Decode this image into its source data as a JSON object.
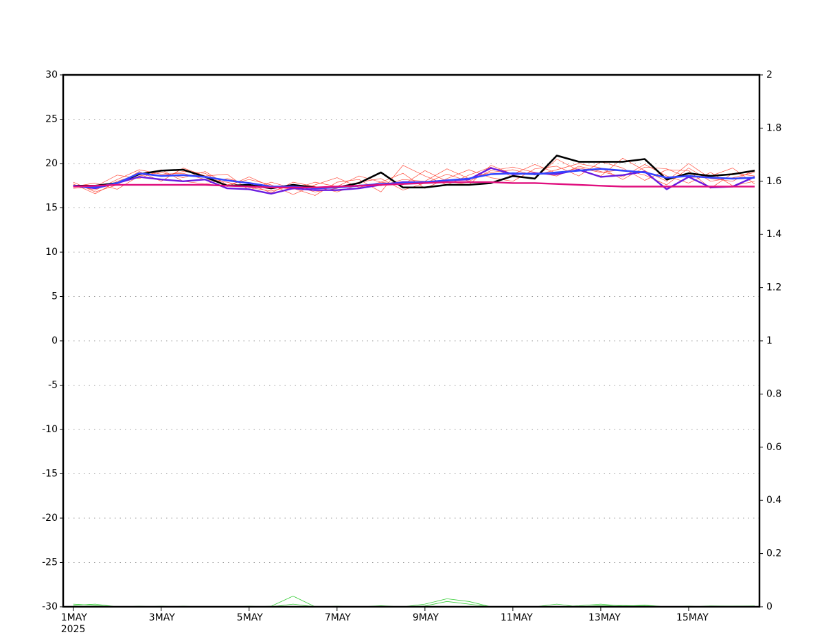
{
  "chart_data": {
    "type": "line",
    "x": [
      1,
      1.5,
      2,
      2.5,
      3,
      3.5,
      4,
      4.5,
      5,
      5.5,
      6,
      6.5,
      7,
      7.5,
      8,
      8.5,
      9,
      9.5,
      10,
      10.5,
      11,
      11.5,
      12,
      12.5,
      13,
      13.5,
      14,
      14.5,
      15,
      15.5,
      16,
      16.5
    ],
    "xlim": [
      0.77,
      16.61
    ],
    "xticks": [
      {
        "value": 1,
        "label": "1MAY"
      },
      {
        "value": 3,
        "label": "3MAY"
      },
      {
        "value": 5,
        "label": "5MAY"
      },
      {
        "value": 7,
        "label": "7MAY"
      },
      {
        "value": 9,
        "label": "9MAY"
      },
      {
        "value": 11,
        "label": "11MAY"
      },
      {
        "value": 13,
        "label": "13MAY"
      },
      {
        "value": 15,
        "label": "15MAY"
      }
    ],
    "year_label": "2025",
    "ylim": [
      -30,
      30
    ],
    "yticks": [
      -30,
      -25,
      -20,
      -15,
      -10,
      -5,
      0,
      5,
      10,
      15,
      20,
      25,
      30
    ],
    "y2lim": [
      0,
      2
    ],
    "y2ticks": [
      0,
      0.2,
      0.4,
      0.6,
      0.8,
      1,
      1.2,
      1.4,
      1.6,
      1.8,
      2
    ],
    "grid": true,
    "series": [
      {
        "color": "#ff4a3a",
        "width": 0.7,
        "values": [
          17.6,
          17.0,
          18.2,
          19.3,
          18.8,
          18.9,
          18.2,
          17.9,
          17.3,
          16.9,
          17.5,
          16.8,
          17.2,
          17.9,
          18.3,
          17.0,
          17.8,
          18.8,
          18.0,
          19.2,
          19.6,
          19.0,
          18.6,
          19.7,
          19.1,
          18.5,
          19.9,
          18.6,
          17.8,
          19.0,
          17.5,
          18.0
        ]
      },
      {
        "color": "#ff4a3a",
        "width": 0.7,
        "values": [
          17.4,
          17.8,
          17.1,
          18.6,
          19.0,
          18.4,
          19.1,
          17.6,
          18.2,
          17.6,
          16.5,
          17.6,
          18.4,
          17.3,
          17.9,
          18.9,
          17.2,
          18.3,
          19.3,
          18.4,
          18.0,
          19.4,
          19.7,
          18.6,
          20.2,
          19.5,
          18.1,
          19.3,
          19.2,
          17.2,
          18.9,
          18.6
        ]
      },
      {
        "color": "#ff4a3a",
        "width": 0.7,
        "values": [
          17.9,
          16.8,
          17.6,
          19.1,
          18.0,
          19.5,
          18.6,
          18.8,
          17.0,
          17.9,
          17.2,
          16.4,
          17.9,
          18.2,
          16.8,
          19.8,
          18.6,
          17.6,
          18.7,
          19.6,
          18.5,
          18.3,
          20.5,
          19.2,
          18.6,
          20.6,
          19.2,
          18.0,
          20.0,
          18.3,
          18.0,
          19.3
        ]
      },
      {
        "color": "#ff4a3a",
        "width": 0.7,
        "values": [
          17.2,
          17.4,
          18.7,
          18.3,
          19.3,
          18.0,
          17.7,
          18.3,
          17.7,
          16.7,
          17.9,
          17.4,
          16.8,
          17.6,
          17.5,
          18.2,
          18.0,
          19.4,
          18.3,
          19.0,
          19.3,
          18.7,
          19.3,
          20.0,
          19.5,
          18.2,
          19.6,
          19.4,
          18.4,
          18.6,
          19.5,
          17.7
        ]
      },
      {
        "color": "#ff4a3a",
        "width": 0.7,
        "values": [
          17.7,
          16.6,
          18.0,
          18.8,
          18.6,
          19.1,
          18.9,
          17.4,
          18.5,
          17.4,
          17.1,
          17.9,
          17.4,
          18.6,
          17.9,
          17.6,
          19.2,
          18.0,
          17.6,
          19.8,
          18.8,
          19.9,
          18.9,
          19.5,
          19.0,
          19.3,
          18.7,
          17.6,
          19.5,
          18.0,
          18.4,
          19.0
        ]
      },
      {
        "color": "#000000",
        "width": 2.6,
        "values": [
          17.5,
          17.5,
          17.8,
          18.8,
          19.2,
          19.3,
          18.5,
          17.5,
          17.6,
          17.2,
          17.6,
          17.3,
          17.3,
          17.8,
          19.0,
          17.3,
          17.3,
          17.6,
          17.6,
          17.8,
          18.6,
          18.3,
          20.9,
          20.2,
          20.2,
          20.2,
          20.5,
          18.2,
          18.9,
          18.6,
          18.8,
          19.2
        ]
      },
      {
        "color": "#6a1be0",
        "width": 2.4,
        "values": [
          17.5,
          17.2,
          17.8,
          18.5,
          18.2,
          18.0,
          18.2,
          17.2,
          17.1,
          16.6,
          17.2,
          17.0,
          17.0,
          17.2,
          17.6,
          17.9,
          17.9,
          18.1,
          18.2,
          19.5,
          18.8,
          18.9,
          18.8,
          19.3,
          18.5,
          18.7,
          19.1,
          17.1,
          18.5,
          17.3,
          17.4,
          18.5
        ]
      },
      {
        "color": "#3344ff",
        "width": 2.6,
        "values": [
          17.5,
          17.3,
          17.8,
          18.9,
          18.6,
          18.7,
          18.5,
          18.1,
          17.8,
          17.4,
          17.4,
          17.2,
          17.3,
          17.5,
          17.7,
          17.8,
          17.9,
          18.1,
          18.3,
          18.8,
          18.9,
          18.8,
          19.0,
          19.2,
          19.4,
          19.2,
          19.0,
          18.4,
          18.6,
          18.4,
          18.3,
          18.4
        ]
      },
      {
        "color": "#e0107f",
        "width": 2.4,
        "values": [
          17.4,
          17.5,
          17.6,
          17.6,
          17.6,
          17.6,
          17.6,
          17.5,
          17.4,
          17.3,
          17.3,
          17.3,
          17.4,
          17.5,
          17.6,
          17.7,
          17.8,
          17.9,
          17.9,
          17.9,
          17.8,
          17.8,
          17.7,
          17.6,
          17.5,
          17.4,
          17.4,
          17.4,
          17.4,
          17.4,
          17.4,
          17.4
        ]
      },
      {
        "color": "#33cc33",
        "width": 0.8,
        "axis": "y2",
        "values": [
          0.01,
          0.005,
          0,
          0,
          0.002,
          0,
          0,
          0,
          0,
          0.002,
          0.04,
          0,
          0,
          0,
          0.004,
          0,
          0.003,
          0.02,
          0.01,
          0,
          0,
          0,
          0.01,
          0,
          0.005,
          0.005,
          0.003,
          0,
          0.002,
          0,
          0.002,
          0.002
        ]
      },
      {
        "color": "#33cc33",
        "width": 0.8,
        "axis": "y2",
        "values": [
          0.005,
          0.01,
          0,
          0.002,
          0,
          0.002,
          0,
          0,
          0.002,
          0,
          0.01,
          0,
          0.002,
          0,
          0,
          0,
          0.01,
          0.03,
          0.02,
          0,
          0,
          0,
          0,
          0.004,
          0.01,
          0.002,
          0.006,
          0,
          0,
          0.003,
          0.002,
          0.003
        ]
      }
    ]
  }
}
